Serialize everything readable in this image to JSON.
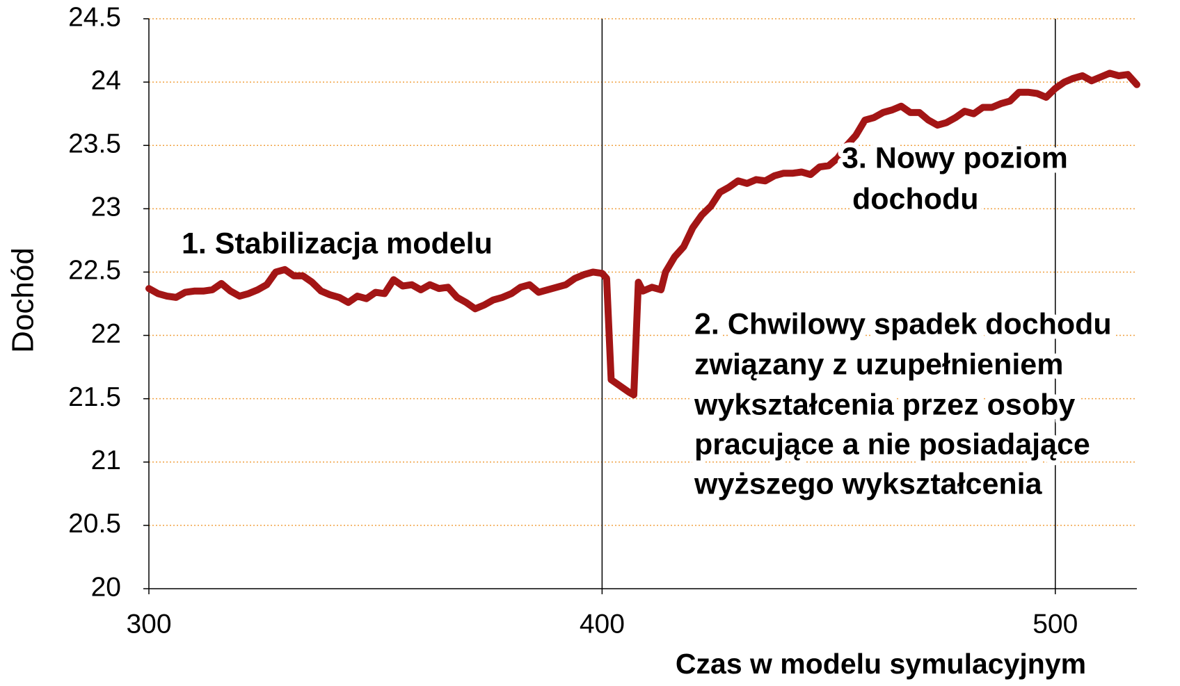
{
  "chart_data": {
    "type": "line",
    "xlabel": "Czas w modelu symulacyjnym",
    "ylabel": "Dochód",
    "xlim": [
      300,
      518
    ],
    "xticks": [
      300,
      400,
      500
    ],
    "ylim": [
      20,
      24.5
    ],
    "yticks": [
      20,
      20.5,
      21,
      21.5,
      22,
      22.5,
      23,
      23.5,
      24,
      24.5
    ],
    "grid": true,
    "annotations": [
      {
        "lines": [
          "1.  Stabilizacja modelu"
        ]
      },
      {
        "lines": [
          "2.  Chwilowy spadek dochodu",
          "związany z uzupełnieniem",
          "wykształcenia przez osoby",
          "pracujące a nie posiadające",
          "wyższego wykształcenia"
        ]
      },
      {
        "lines": [
          "3.  Nowy poziom",
          "dochodu"
        ]
      }
    ],
    "series": [
      {
        "color": "#a31515",
        "x": [
          300,
          302,
          304,
          306,
          308,
          310,
          312,
          314,
          316,
          318,
          320,
          322,
          324,
          326,
          328,
          330,
          332,
          334,
          336,
          338,
          340,
          342,
          344,
          346,
          348,
          350,
          352,
          354,
          356,
          358,
          360,
          362,
          364,
          366,
          368,
          370,
          372,
          374,
          376,
          378,
          380,
          382,
          384,
          386,
          388,
          390,
          392,
          394,
          396,
          398,
          400,
          401,
          402,
          404,
          406,
          407,
          408,
          409,
          411,
          413,
          414,
          416,
          418,
          420,
          422,
          424,
          426,
          428,
          430,
          432,
          434,
          436,
          438,
          440,
          442,
          444,
          446,
          448,
          450,
          452,
          454,
          456,
          458,
          460,
          462,
          464,
          466,
          468,
          470,
          472,
          474,
          476,
          478,
          480,
          482,
          484,
          486,
          488,
          490,
          492,
          494,
          496,
          498,
          500,
          502,
          504,
          506,
          508,
          510,
          512,
          514,
          516,
          518
        ],
        "values": [
          22.37,
          22.33,
          22.31,
          22.3,
          22.34,
          22.35,
          22.35,
          22.36,
          22.41,
          22.35,
          22.31,
          22.33,
          22.36,
          22.4,
          22.5,
          22.52,
          22.47,
          22.47,
          22.42,
          22.35,
          22.32,
          22.3,
          22.26,
          22.31,
          22.29,
          22.34,
          22.33,
          22.44,
          22.39,
          22.4,
          22.36,
          22.4,
          22.37,
          22.38,
          22.3,
          22.26,
          22.21,
          22.24,
          22.28,
          22.3,
          22.33,
          22.38,
          22.4,
          22.34,
          22.36,
          22.38,
          22.4,
          22.45,
          22.48,
          22.5,
          22.49,
          22.45,
          21.65,
          21.6,
          21.55,
          21.53,
          22.42,
          22.35,
          22.38,
          22.36,
          22.5,
          22.62,
          22.7,
          22.85,
          22.95,
          23.02,
          23.13,
          23.17,
          23.22,
          23.2,
          23.23,
          23.22,
          23.26,
          23.28,
          23.28,
          23.29,
          23.27,
          23.33,
          23.34,
          23.4,
          23.5,
          23.58,
          23.7,
          23.72,
          23.76,
          23.78,
          23.81,
          23.76,
          23.76,
          23.7,
          23.66,
          23.68,
          23.72,
          23.77,
          23.75,
          23.8,
          23.8,
          23.83,
          23.85,
          23.92,
          23.92,
          23.91,
          23.88,
          23.95,
          24.0,
          24.03,
          24.05,
          24.01,
          24.04,
          24.07,
          24.05,
          24.06,
          23.98
        ]
      }
    ]
  }
}
